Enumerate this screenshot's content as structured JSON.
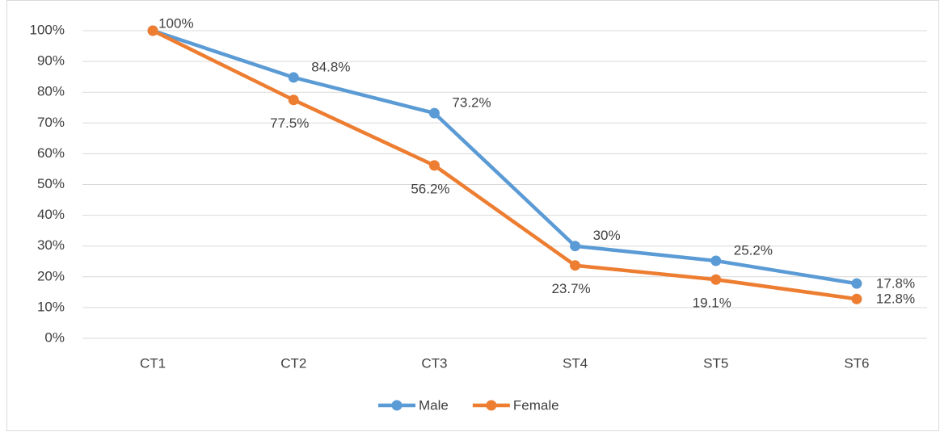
{
  "chart_data": {
    "type": "line",
    "categories": [
      "CT1",
      "CT2",
      "CT3",
      "ST4",
      "ST5",
      "ST6"
    ],
    "series": [
      {
        "name": "Male",
        "color": "#5b9bd5",
        "values": [
          100,
          84.8,
          73.2,
          30,
          25.2,
          17.8
        ],
        "value_labels": [
          "100%",
          "84.8%",
          "73.2%",
          "30%",
          "25.2%",
          "17.8%"
        ]
      },
      {
        "name": "Female",
        "color": "#ed7d31",
        "values": [
          100,
          77.5,
          56.2,
          23.7,
          19.1,
          12.8
        ],
        "value_labels": [
          null,
          "77.5%",
          "56.2%",
          "23.7%",
          "19.1%",
          "12.8%"
        ]
      }
    ],
    "ylim": [
      0,
      100
    ],
    "yticks": [
      {
        "value": 0,
        "label": "0%"
      },
      {
        "value": 10,
        "label": "10%"
      },
      {
        "value": 20,
        "label": "20%"
      },
      {
        "value": 30,
        "label": "30%"
      },
      {
        "value": 40,
        "label": "40%"
      },
      {
        "value": 50,
        "label": "50%"
      },
      {
        "value": 60,
        "label": "60%"
      },
      {
        "value": 70,
        "label": "70%"
      },
      {
        "value": 80,
        "label": "80%"
      },
      {
        "value": 90,
        "label": "90%"
      },
      {
        "value": 100,
        "label": "100%"
      }
    ],
    "grid": true,
    "legend": "bottom"
  }
}
